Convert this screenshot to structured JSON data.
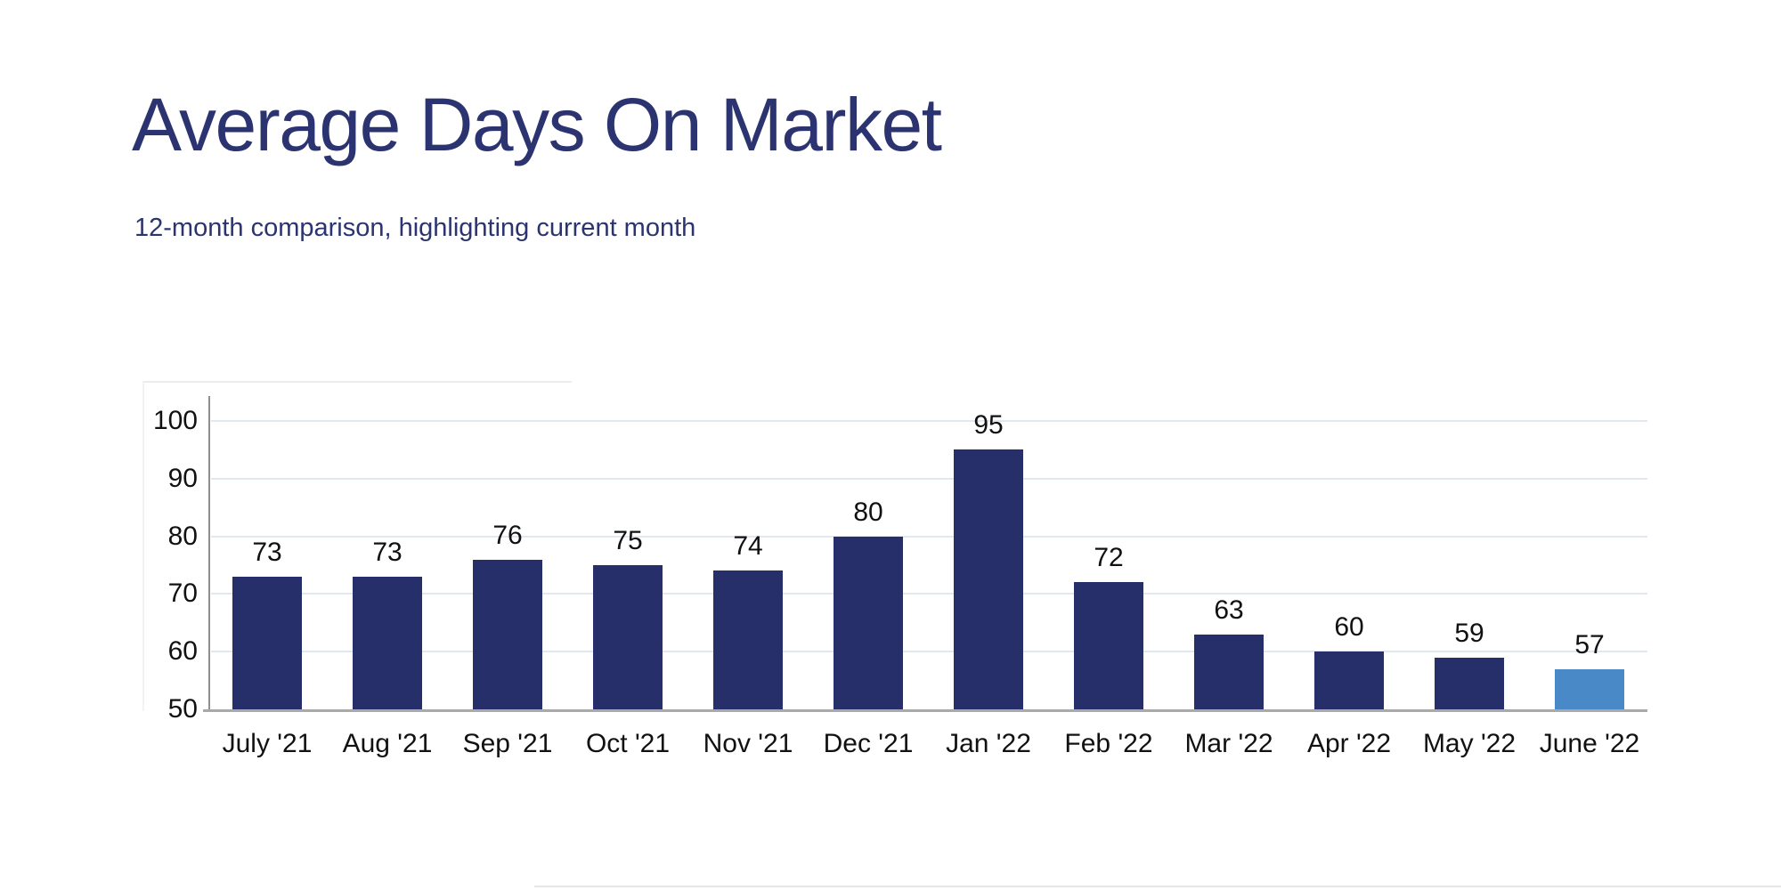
{
  "header": {
    "title": "Average Days On Market",
    "subtitle": "12-month comparison, highlighting current month"
  },
  "chart_data": {
    "type": "bar",
    "title": "Average Days On Market",
    "subtitle": "12-month comparison, highlighting current month",
    "categories": [
      "July '21",
      "Aug '21",
      "Sep '21",
      "Oct '21",
      "Nov '21",
      "Dec '21",
      "Jan '22",
      "Feb '22",
      "Mar '22",
      "Apr '22",
      "May '22",
      "June '22"
    ],
    "values": [
      73,
      73,
      76,
      75,
      74,
      80,
      95,
      72,
      63,
      60,
      59,
      57
    ],
    "highlight_index": 11,
    "highlight_meaning": "current month",
    "xlabel": "",
    "ylabel": "",
    "ylim": [
      50,
      105
    ],
    "yticks": [
      50,
      60,
      70,
      80,
      90,
      100
    ],
    "grid": true,
    "legend": "none",
    "colors": {
      "bar": "#272f6b",
      "highlight_bar": "#4a89c8",
      "title_text": "#2b3470",
      "grid_line": "#e2e8f0",
      "axis_line": "#a9a9a9",
      "tick_text": "#111111"
    }
  }
}
